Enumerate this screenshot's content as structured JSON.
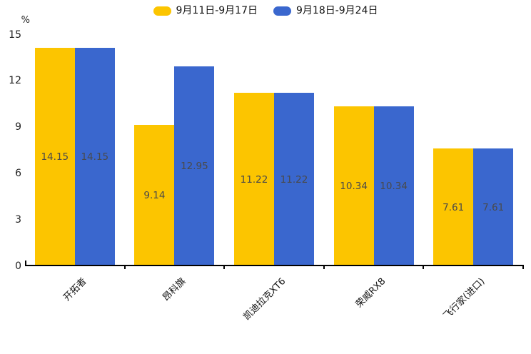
{
  "chart_data": {
    "type": "bar",
    "title": "",
    "xlabel": "",
    "ylabel": "%",
    "categories": [
      "开拓者",
      "昂科旗",
      "凯迪拉克XT6",
      "荣威RX8",
      "飞行家(进口)"
    ],
    "series": [
      {
        "name": "9月11日-9月17日",
        "color": "#FCC500",
        "values": [
          14.15,
          9.14,
          11.22,
          10.34,
          7.61
        ]
      },
      {
        "name": "9月18日-9月24日",
        "color": "#3A67CE",
        "values": [
          14.15,
          12.95,
          11.22,
          10.34,
          7.61
        ]
      }
    ],
    "yticks": [
      0,
      3,
      6,
      9,
      12,
      15
    ],
    "ylim": [
      0,
      15
    ],
    "grid": false,
    "legend_position": "top-center",
    "value_labels": "centered-inside-bars",
    "value_label_color": "#4a4a4a",
    "axis_line_color": "#000000"
  }
}
